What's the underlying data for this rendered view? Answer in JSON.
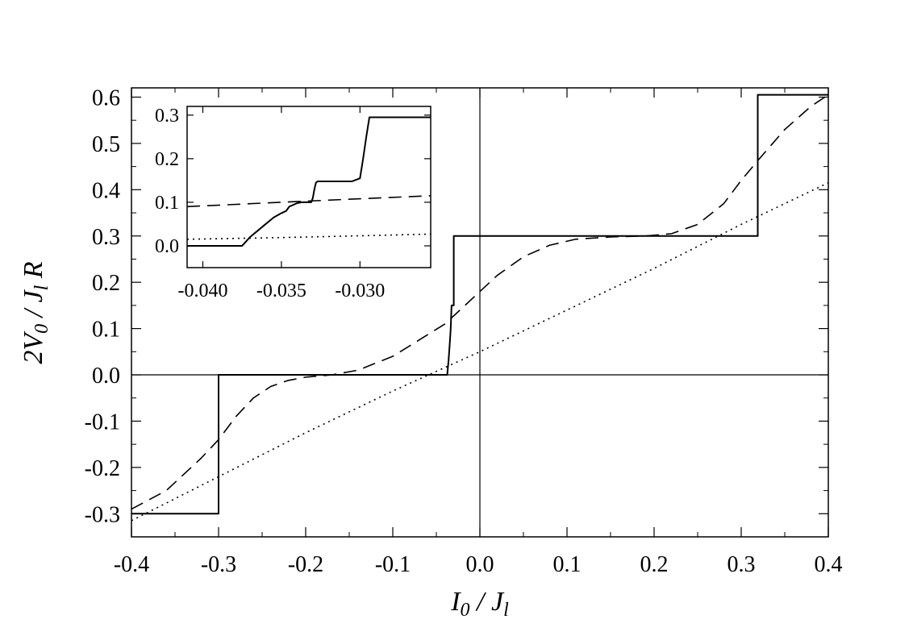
{
  "chart_data": [
    {
      "type": "line",
      "xlabel": {
        "parts": [
          [
            "I",
            ""
          ],
          [
            "0",
            "sub"
          ],
          [
            " / ",
            ""
          ],
          [
            "J",
            ""
          ],
          [
            "l",
            "sub"
          ]
        ]
      },
      "ylabel": {
        "parts": [
          [
            "2V",
            ""
          ],
          [
            "0",
            "sub"
          ],
          [
            " / ",
            ""
          ],
          [
            "J",
            ""
          ],
          [
            "l",
            "sub"
          ],
          [
            " R",
            ""
          ]
        ]
      },
      "xlim": [
        -0.4,
        0.4
      ],
      "ylim": [
        -0.35,
        0.62
      ],
      "xticks": [
        -0.4,
        -0.3,
        -0.2,
        -0.1,
        0.0,
        0.1,
        0.2,
        0.3,
        0.4
      ],
      "xtick_labels": [
        "-0.4",
        "-0.3",
        "-0.2",
        "-0.1",
        "0.0",
        "0.1",
        "0.2",
        "0.3",
        "0.4"
      ],
      "yticks": [
        -0.3,
        -0.2,
        -0.1,
        0.0,
        0.1,
        0.2,
        0.3,
        0.4,
        0.5,
        0.6
      ],
      "ytick_labels": [
        "-0.3",
        "-0.2",
        "-0.1",
        "0.0",
        "0.1",
        "0.2",
        "0.3",
        "0.4",
        "0.5",
        "0.6"
      ],
      "reference_lines": {
        "x": 0.0,
        "y": 0.0
      },
      "series": [
        {
          "style": "solid",
          "x": [
            -0.4,
            -0.3,
            -0.3,
            -0.0375,
            -0.036,
            -0.0345,
            -0.0335,
            -0.0325,
            -0.032,
            -0.031,
            -0.03,
            -0.03,
            0.319,
            0.319,
            0.4
          ],
          "y": [
            -0.3,
            -0.3,
            0.0,
            0.0,
            0.03,
            0.07,
            0.1,
            0.15,
            0.15,
            0.15,
            0.15,
            0.3,
            0.3,
            0.605,
            0.605
          ]
        },
        {
          "style": "dashed",
          "x": [
            -0.4,
            -0.36,
            -0.32,
            -0.3,
            -0.28,
            -0.26,
            -0.24,
            -0.22,
            -0.2,
            -0.17,
            -0.14,
            -0.1,
            -0.07,
            -0.04,
            -0.02,
            0.0,
            0.02,
            0.05,
            0.08,
            0.11,
            0.15,
            0.19,
            0.22,
            0.25,
            0.28,
            0.3,
            0.32,
            0.35,
            0.38,
            0.4
          ],
          "y": [
            -0.29,
            -0.25,
            -0.18,
            -0.14,
            -0.09,
            -0.05,
            -0.025,
            -0.012,
            -0.005,
            0.0,
            0.01,
            0.04,
            0.075,
            0.11,
            0.145,
            0.18,
            0.215,
            0.255,
            0.28,
            0.293,
            0.298,
            0.3,
            0.305,
            0.325,
            0.37,
            0.42,
            0.465,
            0.53,
            0.58,
            0.605
          ]
        },
        {
          "style": "dotted",
          "x": [
            -0.4,
            -0.3,
            -0.2,
            -0.1,
            0.0,
            0.1,
            0.2,
            0.3,
            0.4
          ],
          "y": [
            -0.315,
            -0.22,
            -0.125,
            -0.035,
            0.05,
            0.14,
            0.23,
            0.325,
            0.415
          ]
        }
      ]
    },
    {
      "type": "line",
      "inset": true,
      "xlim": [
        -0.041,
        -0.0255
      ],
      "ylim": [
        -0.05,
        0.32
      ],
      "xticks": [
        -0.04,
        -0.035,
        -0.03
      ],
      "xtick_labels": [
        "-0.040",
        "-0.035",
        "-0.030"
      ],
      "yticks": [
        0.0,
        0.1,
        0.2,
        0.3
      ],
      "ytick_labels": [
        "0.0",
        "0.1",
        "0.2",
        "0.3"
      ],
      "series": [
        {
          "style": "solid",
          "x": [
            -0.041,
            -0.0375,
            -0.037,
            -0.0365,
            -0.036,
            -0.0355,
            -0.035,
            -0.0347,
            -0.0345,
            -0.034,
            -0.0337,
            -0.0335,
            -0.0333,
            -0.0331,
            -0.033,
            -0.0329,
            -0.0328,
            -0.0327,
            -0.0325,
            -0.0305,
            -0.03,
            -0.0298,
            -0.0296,
            -0.0294,
            -0.0255
          ],
          "y": [
            0.0,
            0.0,
            0.02,
            0.035,
            0.05,
            0.065,
            0.075,
            0.08,
            0.09,
            0.098,
            0.1,
            0.1,
            0.1,
            0.1,
            0.11,
            0.13,
            0.145,
            0.148,
            0.148,
            0.148,
            0.155,
            0.2,
            0.25,
            0.295,
            0.295
          ]
        },
        {
          "style": "dashed",
          "x": [
            -0.041,
            -0.035,
            -0.03,
            -0.0255
          ],
          "y": [
            0.09,
            0.1,
            0.108,
            0.115
          ]
        },
        {
          "style": "dotted",
          "x": [
            -0.041,
            -0.035,
            -0.03,
            -0.0255
          ],
          "y": [
            0.015,
            0.019,
            0.023,
            0.027
          ]
        }
      ]
    }
  ]
}
